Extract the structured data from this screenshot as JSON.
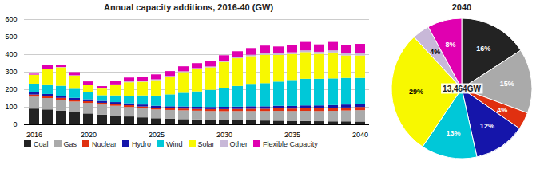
{
  "chart_data": [
    {
      "type": "bar",
      "stacked": true,
      "title": "Annual capacity additions, 2016-40 (GW)",
      "categories": [
        "2016",
        null,
        null,
        null,
        "2020",
        null,
        null,
        null,
        null,
        "2025",
        null,
        null,
        null,
        null,
        "2030",
        null,
        null,
        null,
        null,
        "2035",
        null,
        null,
        null,
        null,
        "2040"
      ],
      "series": [
        {
          "name": "Coal",
          "color": "#232323",
          "values": [
            90,
            85,
            78,
            70,
            62,
            55,
            50,
            45,
            40,
            35,
            32,
            30,
            28,
            26,
            25,
            24,
            23,
            22,
            21,
            20,
            19,
            18,
            17,
            17,
            16
          ]
        },
        {
          "name": "Gas",
          "color": "#aaaaaa",
          "values": [
            68,
            65,
            62,
            60,
            60,
            58,
            56,
            54,
            52,
            50,
            50,
            50,
            50,
            50,
            50,
            52,
            53,
            54,
            56,
            56,
            58,
            58,
            60,
            62,
            65
          ]
        },
        {
          "name": "Nuclear",
          "color": "#e03010",
          "values": [
            12,
            11,
            11,
            10,
            10,
            10,
            10,
            10,
            10,
            10,
            10,
            10,
            10,
            11,
            12,
            12,
            13,
            13,
            14,
            14,
            15,
            16,
            16,
            17,
            18
          ]
        },
        {
          "name": "Hydro",
          "color": "#1515aa",
          "values": [
            12,
            12,
            11,
            11,
            11,
            11,
            11,
            11,
            11,
            11,
            11,
            12,
            12,
            12,
            13,
            13,
            14,
            14,
            15,
            15,
            16,
            16,
            17,
            17,
            18
          ]
        },
        {
          "name": "Wind",
          "color": "#00c8d8",
          "values": [
            50,
            55,
            58,
            52,
            40,
            32,
            38,
            42,
            52,
            58,
            68,
            78,
            88,
            98,
            108,
            118,
            128,
            132,
            138,
            148,
            152,
            152,
            152,
            152,
            148
          ]
        },
        {
          "name": "Solar",
          "color": "#f8f800",
          "values": [
            50,
            88,
            105,
            75,
            42,
            38,
            58,
            78,
            78,
            88,
            100,
            118,
            128,
            128,
            148,
            158,
            158,
            162,
            152,
            148,
            152,
            142,
            148,
            128,
            128
          ]
        },
        {
          "name": "Other",
          "color": "#c8b8d8",
          "values": [
            2,
            2,
            2,
            2,
            2,
            2,
            5,
            5,
            5,
            5,
            5,
            5,
            5,
            5,
            6,
            8,
            8,
            10,
            10,
            10,
            10,
            12,
            12,
            12,
            14
          ]
        },
        {
          "name": "Flexible Capacity",
          "color": "#e000b0",
          "values": [
            5,
            22,
            12,
            18,
            18,
            12,
            22,
            22,
            22,
            28,
            28,
            28,
            28,
            32,
            32,
            32,
            38,
            42,
            38,
            42,
            48,
            42,
            48,
            48,
            52
          ]
        }
      ],
      "ylim": [
        0,
        600
      ],
      "yticks": [
        0,
        100,
        200,
        300,
        400,
        500,
        600
      ],
      "grid": true,
      "legend": "bottom"
    },
    {
      "type": "pie",
      "title": "2040",
      "values": [
        16,
        15,
        4,
        12,
        13,
        29,
        4,
        8
      ],
      "value_labels": [
        "16%",
        "15%",
        "4%",
        "12%",
        "13%",
        "29%",
        "4%",
        "8%"
      ],
      "colors": [
        "#232323",
        "#aaaaaa",
        "#e03010",
        "#1515aa",
        "#00c8d8",
        "#f8f800",
        "#c8b8d8",
        "#e000b0"
      ],
      "data_labels": true,
      "annotations": [
        "13,464GW"
      ]
    }
  ]
}
